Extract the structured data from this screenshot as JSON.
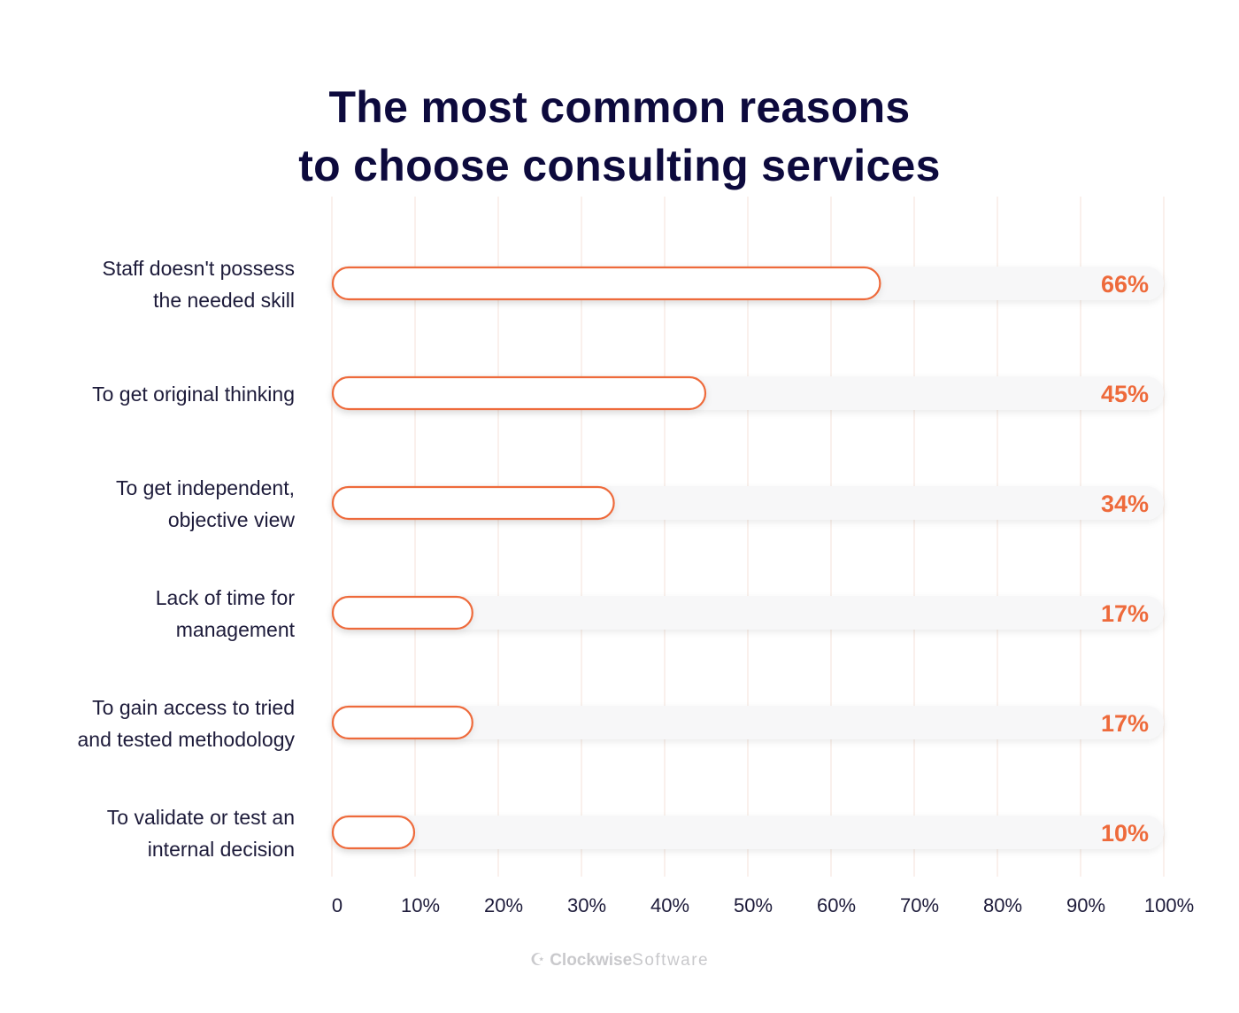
{
  "chart_data": {
    "type": "bar",
    "orientation": "horizontal",
    "title": [
      "The most common reasons",
      "to choose consulting services"
    ],
    "categories": [
      [
        "Staff doesn't possess",
        "the needed skill"
      ],
      [
        "To get original thinking"
      ],
      [
        "To get independent,",
        "objective view"
      ],
      [
        "Lack of time for",
        "management"
      ],
      [
        "To gain access to tried",
        "and tested methodology"
      ],
      [
        "To validate or test an",
        "internal decision"
      ]
    ],
    "values": [
      66,
      45,
      34,
      17,
      17,
      10
    ],
    "value_labels": [
      "66%",
      "45%",
      "34%",
      "17%",
      "17%",
      "10%"
    ],
    "xlim": [
      0,
      100
    ],
    "xticks": [
      "0",
      "10%",
      "20%",
      "30%",
      "40%",
      "50%",
      "60%",
      "70%",
      "80%",
      "90%",
      "100%"
    ],
    "grid": "vertical",
    "legend": "none",
    "colors": {
      "bar_outline": "#ee6a3b",
      "value_label": "#ee6a3b",
      "grid": "#f8ece6",
      "track": "#f7f7f8",
      "title": "#0d0a3d"
    }
  },
  "brand": {
    "part1": "Clockwise",
    "part2": "Software"
  }
}
